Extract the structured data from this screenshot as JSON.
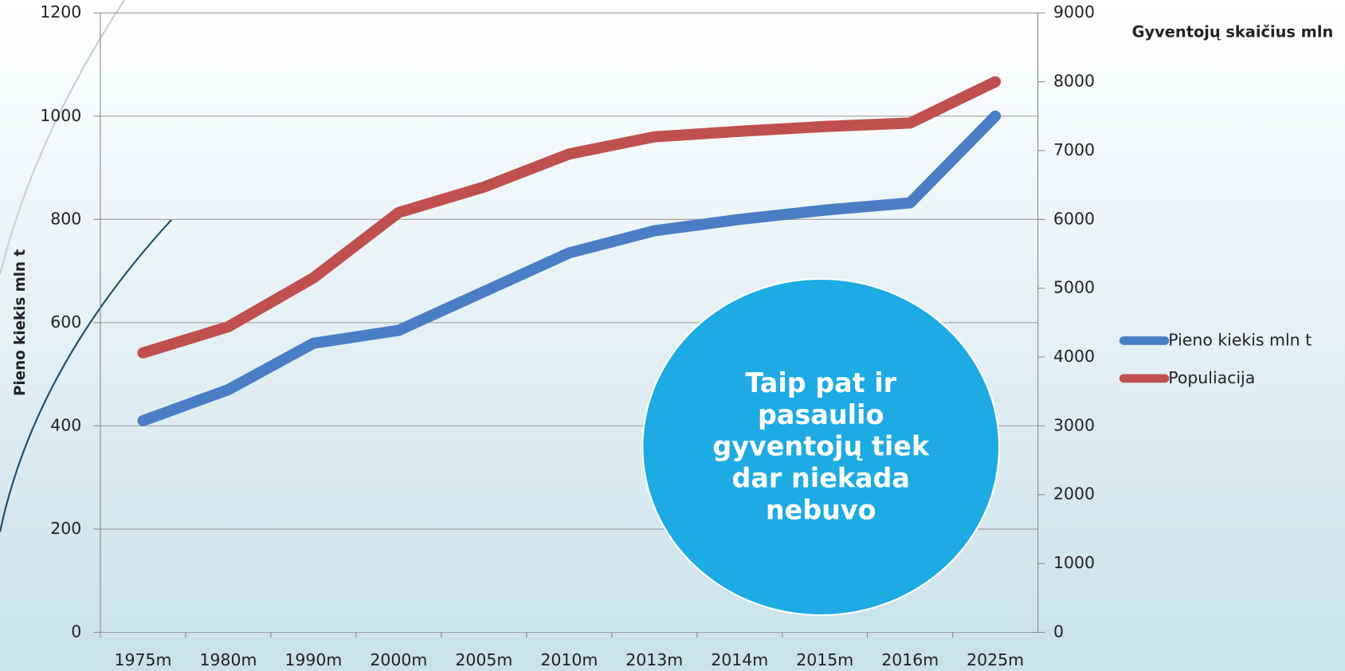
{
  "chart_data": {
    "type": "line",
    "categories": [
      "1975m",
      "1980m",
      "1990m",
      "2000m",
      "2005m",
      "2010m",
      "2013m",
      "2014m",
      "2015m",
      "2016m",
      "2025m"
    ],
    "series": [
      {
        "name": "Pieno kiekis mln t",
        "color": "#4a7ec4",
        "values": [
          410,
          470,
          560,
          585,
          660,
          735,
          778,
          800,
          818,
          832,
          1000
        ]
      },
      {
        "name": "Populiacija",
        "color": "#c0504d",
        "axis": "y2",
        "values": [
          4060,
          4440,
          5150,
          6100,
          6470,
          6950,
          7200,
          7280,
          7350,
          7400,
          8000
        ]
      }
    ],
    "ylabel": "Pieno kiekis mln t",
    "y2label": "Gyventojų skaičius mln",
    "ylim": [
      0,
      1200
    ],
    "yticks": [
      0,
      200,
      400,
      600,
      800,
      1000,
      1200
    ],
    "y2lim": [
      0,
      9000
    ],
    "y2ticks": [
      0,
      1000,
      2000,
      3000,
      4000,
      5000,
      6000,
      7000,
      8000,
      9000
    ],
    "grid": true,
    "legend": "right",
    "annotation": "Taip pat ir pasaulio gyventojų tiek dar niekada nebuvo"
  }
}
